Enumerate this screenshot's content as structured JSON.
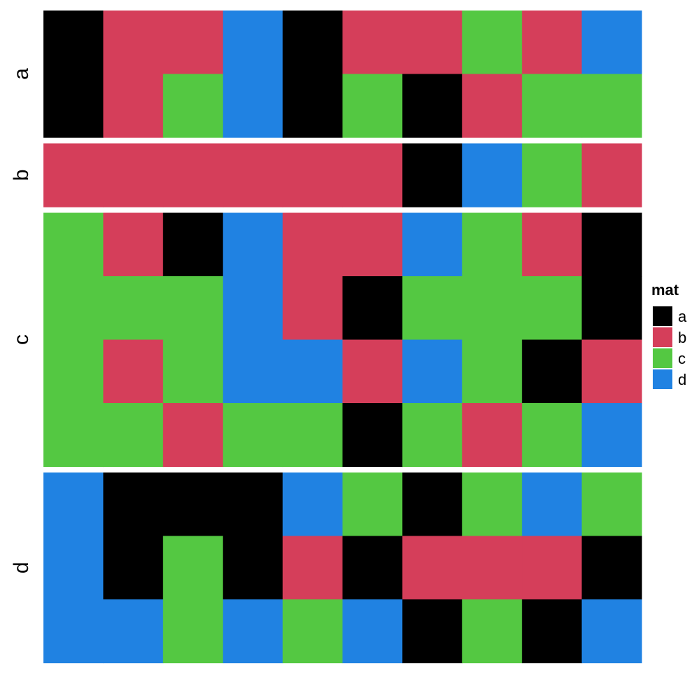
{
  "chart_data": {
    "type": "heatmap",
    "title": "",
    "xlabel": "",
    "ylabel": "",
    "legend": {
      "title": "mat",
      "placement": "right",
      "items": [
        {
          "label": "a",
          "color": "#000000"
        },
        {
          "label": "b",
          "color": "#D53E5A"
        },
        {
          "label": "c",
          "color": "#54C842"
        },
        {
          "label": "d",
          "color": "#2082E2"
        }
      ]
    },
    "row_groups": [
      {
        "label": "a",
        "rows": [
          [
            "a",
            "b",
            "b",
            "d",
            "a",
            "b",
            "b",
            "c",
            "b",
            "d"
          ],
          [
            "a",
            "b",
            "c",
            "d",
            "a",
            "c",
            "a",
            "b",
            "c",
            "c"
          ]
        ]
      },
      {
        "label": "b",
        "rows": [
          [
            "b",
            "b",
            "b",
            "b",
            "b",
            "b",
            "a",
            "d",
            "c",
            "b"
          ]
        ]
      },
      {
        "label": "c",
        "rows": [
          [
            "c",
            "b",
            "a",
            "d",
            "b",
            "b",
            "d",
            "c",
            "b",
            "a"
          ],
          [
            "c",
            "c",
            "c",
            "d",
            "b",
            "a",
            "c",
            "c",
            "c",
            "a"
          ],
          [
            "c",
            "b",
            "c",
            "d",
            "d",
            "b",
            "d",
            "c",
            "a",
            "b"
          ],
          [
            "c",
            "c",
            "b",
            "c",
            "c",
            "a",
            "c",
            "b",
            "c",
            "d"
          ]
        ]
      },
      {
        "label": "d",
        "rows": [
          [
            "d",
            "a",
            "a",
            "a",
            "d",
            "c",
            "a",
            "c",
            "d",
            "c"
          ],
          [
            "d",
            "a",
            "c",
            "a",
            "b",
            "a",
            "b",
            "b",
            "b",
            "a"
          ],
          [
            "d",
            "d",
            "c",
            "d",
            "c",
            "d",
            "a",
            "c",
            "a",
            "d"
          ]
        ]
      }
    ]
  }
}
